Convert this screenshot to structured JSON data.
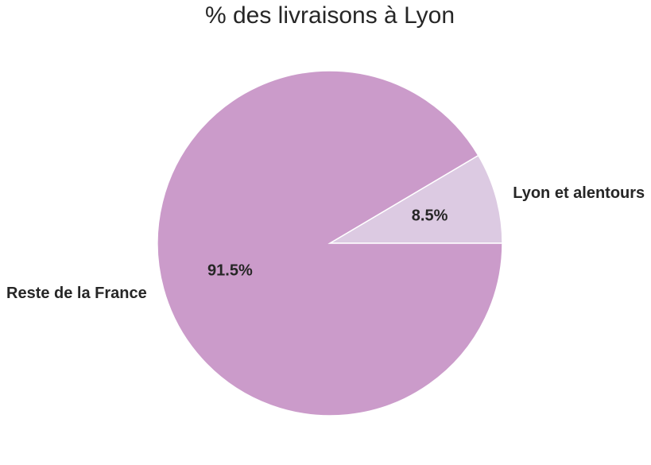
{
  "chart_data": {
    "type": "pie",
    "title": "% des livraisons à Lyon",
    "slices": [
      {
        "label": "Lyon et alentours",
        "value": 8.5,
        "pct_label": "8.5%",
        "color": "#dccae2"
      },
      {
        "label": "Reste de la France",
        "value": 91.5,
        "pct_label": "91.5%",
        "color": "#cb9bca"
      }
    ],
    "start_angle_deg": 0,
    "direction": "counterclockwise",
    "legend": "none"
  }
}
